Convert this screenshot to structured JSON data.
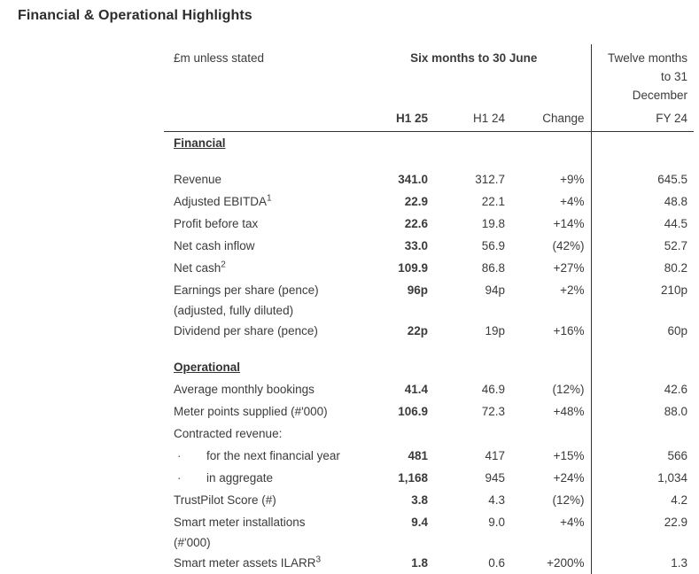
{
  "page": {
    "title": "Financial & Operational Highlights"
  },
  "table": {
    "unit_note": "£m unless stated",
    "span_header": "Six months to 30 June",
    "right_header_lines": [
      "Twelve months",
      "to 31",
      "December"
    ],
    "columns": {
      "h1_25": "H1 25",
      "h1_24": "H1 24",
      "change": "Change",
      "fy_24": "FY 24"
    },
    "rows": [
      {
        "type": "section",
        "label": "Financial"
      },
      {
        "type": "spacer"
      },
      {
        "type": "data",
        "label": "Revenue",
        "h1_25": "341.0",
        "h1_24": "312.7",
        "change": "+9%",
        "fy_24": "645.5"
      },
      {
        "type": "data",
        "label": "Adjusted EBITDA",
        "sup": "1",
        "h1_25": "22.9",
        "h1_24": "22.1",
        "change": "+4%",
        "fy_24": "48.8"
      },
      {
        "type": "data",
        "label": "Profit before tax",
        "h1_25": "22.6",
        "h1_24": "19.8",
        "change": "+14%",
        "fy_24": "44.5"
      },
      {
        "type": "data",
        "label": "Net cash inflow",
        "h1_25": "33.0",
        "h1_24": "56.9",
        "change": "(42%)",
        "fy_24": "52.7"
      },
      {
        "type": "data",
        "label": "Net cash",
        "sup": "2",
        "h1_25": "109.9",
        "h1_24": "86.8",
        "change": "+27%",
        "fy_24": "80.2"
      },
      {
        "type": "data",
        "label": "Earnings per share (pence)",
        "label2": "(adjusted, fully diluted)",
        "h1_25": "96p",
        "h1_24": "94p",
        "change": "+2%",
        "fy_24": "210p"
      },
      {
        "type": "data",
        "label": "Dividend per share (pence)",
        "h1_25": "22p",
        "h1_24": "19p",
        "change": "+16%",
        "fy_24": "60p"
      },
      {
        "type": "spacer"
      },
      {
        "type": "section",
        "label": "Operational"
      },
      {
        "type": "data",
        "label": "Average monthly bookings",
        "h1_25": "41.4",
        "h1_24": "46.9",
        "change": "(12%)",
        "fy_24": "42.6"
      },
      {
        "type": "data",
        "label": "Meter points supplied (#'000)",
        "h1_25": "106.9",
        "h1_24": "72.3",
        "change": "+48%",
        "fy_24": "88.0"
      },
      {
        "type": "data",
        "label": "Contracted revenue:"
      },
      {
        "type": "data",
        "bullet": true,
        "label": "for the next financial year",
        "h1_25": "481",
        "h1_24": "417",
        "change": "+15%",
        "fy_24": "566"
      },
      {
        "type": "data",
        "bullet": true,
        "label": "in aggregate",
        "h1_25": "1,168",
        "h1_24": "945",
        "change": "+24%",
        "fy_24": "1,034"
      },
      {
        "type": "data",
        "label": "TrustPilot Score (#)",
        "h1_25": "3.8",
        "h1_24": "4.3",
        "change": "(12%)",
        "fy_24": "4.2"
      },
      {
        "type": "data",
        "label": "Smart meter installations",
        "label2": "(#'000)",
        "h1_25": "9.4",
        "h1_24": "9.0",
        "change": "+4%",
        "fy_24": "22.9"
      },
      {
        "type": "data",
        "label": "Smart meter assets ILARR",
        "sup": "3",
        "h1_25": "1.8",
        "h1_24": "0.6",
        "change": "+200%",
        "fy_24": "1.3"
      }
    ]
  }
}
